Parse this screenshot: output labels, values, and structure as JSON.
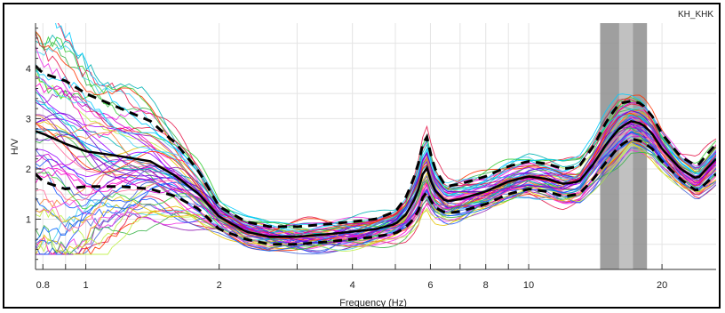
{
  "chart_data": {
    "type": "line",
    "station_label": "KH_KHK",
    "xlabel": "Frequency (Hz)",
    "ylabel": "H/V",
    "x_scale": "log",
    "xlim": [
      0.77,
      26.5
    ],
    "ylim": [
      0,
      4.9
    ],
    "grid": true,
    "x_ticks": [
      {
        "value": 0.8,
        "label": "0.8"
      },
      {
        "value": 1,
        "label": "1"
      },
      {
        "value": 2,
        "label": "2"
      },
      {
        "value": 4,
        "label": "4"
      },
      {
        "value": 6,
        "label": "6"
      },
      {
        "value": 8,
        "label": "8"
      },
      {
        "value": 10,
        "label": "10"
      },
      {
        "value": 20,
        "label": "20"
      }
    ],
    "y_ticks": [
      {
        "value": 1,
        "label": "1"
      },
      {
        "value": 2,
        "label": "2"
      },
      {
        "value": 3,
        "label": "3"
      },
      {
        "value": 4,
        "label": "4"
      }
    ],
    "peak_band": {
      "x_outer": [
        14.5,
        18.5
      ],
      "x_inner": [
        16.0,
        17.2
      ]
    },
    "mean_curve": {
      "x": [
        0.77,
        0.8,
        0.9,
        1.0,
        1.2,
        1.4,
        1.6,
        1.8,
        2.0,
        2.3,
        2.6,
        3.0,
        3.5,
        4.0,
        4.5,
        5.0,
        5.3,
        5.6,
        5.85,
        6.1,
        6.5,
        7.0,
        8.0,
        9.0,
        10.0,
        11.0,
        12.0,
        13.0,
        14.0,
        15.0,
        16.0,
        17.0,
        18.0,
        19.0,
        20.0,
        22.0,
        24.0,
        26.5
      ],
      "y": [
        2.75,
        2.7,
        2.5,
        2.35,
        2.25,
        2.15,
        1.85,
        1.5,
        1.05,
        0.75,
        0.65,
        0.65,
        0.7,
        0.75,
        0.8,
        0.9,
        1.1,
        1.5,
        2.1,
        1.6,
        1.35,
        1.4,
        1.55,
        1.75,
        1.85,
        1.8,
        1.7,
        1.75,
        2.1,
        2.5,
        2.8,
        2.95,
        2.9,
        2.7,
        2.4,
        2.0,
        1.8,
        2.2
      ]
    },
    "upper_std_curve": {
      "x": [
        0.77,
        0.8,
        0.9,
        1.0,
        1.2,
        1.4,
        1.6,
        1.8,
        2.0,
        2.3,
        2.6,
        3.0,
        3.5,
        4.0,
        4.5,
        5.0,
        5.3,
        5.6,
        5.85,
        6.1,
        6.5,
        7.0,
        8.0,
        9.0,
        10.0,
        11.0,
        12.0,
        13.0,
        14.0,
        15.0,
        16.0,
        17.0,
        18.0,
        19.0,
        20.0,
        22.0,
        24.0,
        26.5
      ],
      "y": [
        4.05,
        3.9,
        3.75,
        3.5,
        3.2,
        2.95,
        2.5,
        1.95,
        1.25,
        0.95,
        0.85,
        0.85,
        0.9,
        0.95,
        1.0,
        1.15,
        1.45,
        2.0,
        2.75,
        2.05,
        1.65,
        1.7,
        1.85,
        2.05,
        2.15,
        2.1,
        2.0,
        2.05,
        2.45,
        2.95,
        3.3,
        3.35,
        3.3,
        3.05,
        2.7,
        2.25,
        2.05,
        2.5
      ]
    },
    "lower_std_curve": {
      "x": [
        0.77,
        0.8,
        0.9,
        1.0,
        1.2,
        1.4,
        1.6,
        1.8,
        2.0,
        2.3,
        2.6,
        3.0,
        3.5,
        4.0,
        4.5,
        5.0,
        5.3,
        5.6,
        5.85,
        6.1,
        6.5,
        7.0,
        8.0,
        9.0,
        10.0,
        11.0,
        12.0,
        13.0,
        14.0,
        15.0,
        16.0,
        17.0,
        18.0,
        19.0,
        20.0,
        22.0,
        24.0,
        26.5
      ],
      "y": [
        1.9,
        1.75,
        1.6,
        1.65,
        1.65,
        1.6,
        1.45,
        1.2,
        0.8,
        0.6,
        0.5,
        0.5,
        0.55,
        0.6,
        0.65,
        0.72,
        0.85,
        1.1,
        1.6,
        1.25,
        1.12,
        1.15,
        1.3,
        1.5,
        1.6,
        1.55,
        1.45,
        1.5,
        1.8,
        2.15,
        2.45,
        2.6,
        2.55,
        2.4,
        2.15,
        1.8,
        1.55,
        1.9
      ]
    },
    "window_curves": {
      "count": 60,
      "colors": [
        "#e6194b",
        "#3cb44b",
        "#4363d8",
        "#f58231",
        "#911eb4",
        "#42d4f4",
        "#f032e6",
        "#bfef45",
        "#e6c200",
        "#1a53ff",
        "#ff00cc",
        "#00b3b3",
        "#ff3300",
        "#9900ff",
        "#33cc33",
        "#0066ff",
        "#cc00cc",
        "#ff6699",
        "#6600cc",
        "#00ccff"
      ]
    }
  }
}
